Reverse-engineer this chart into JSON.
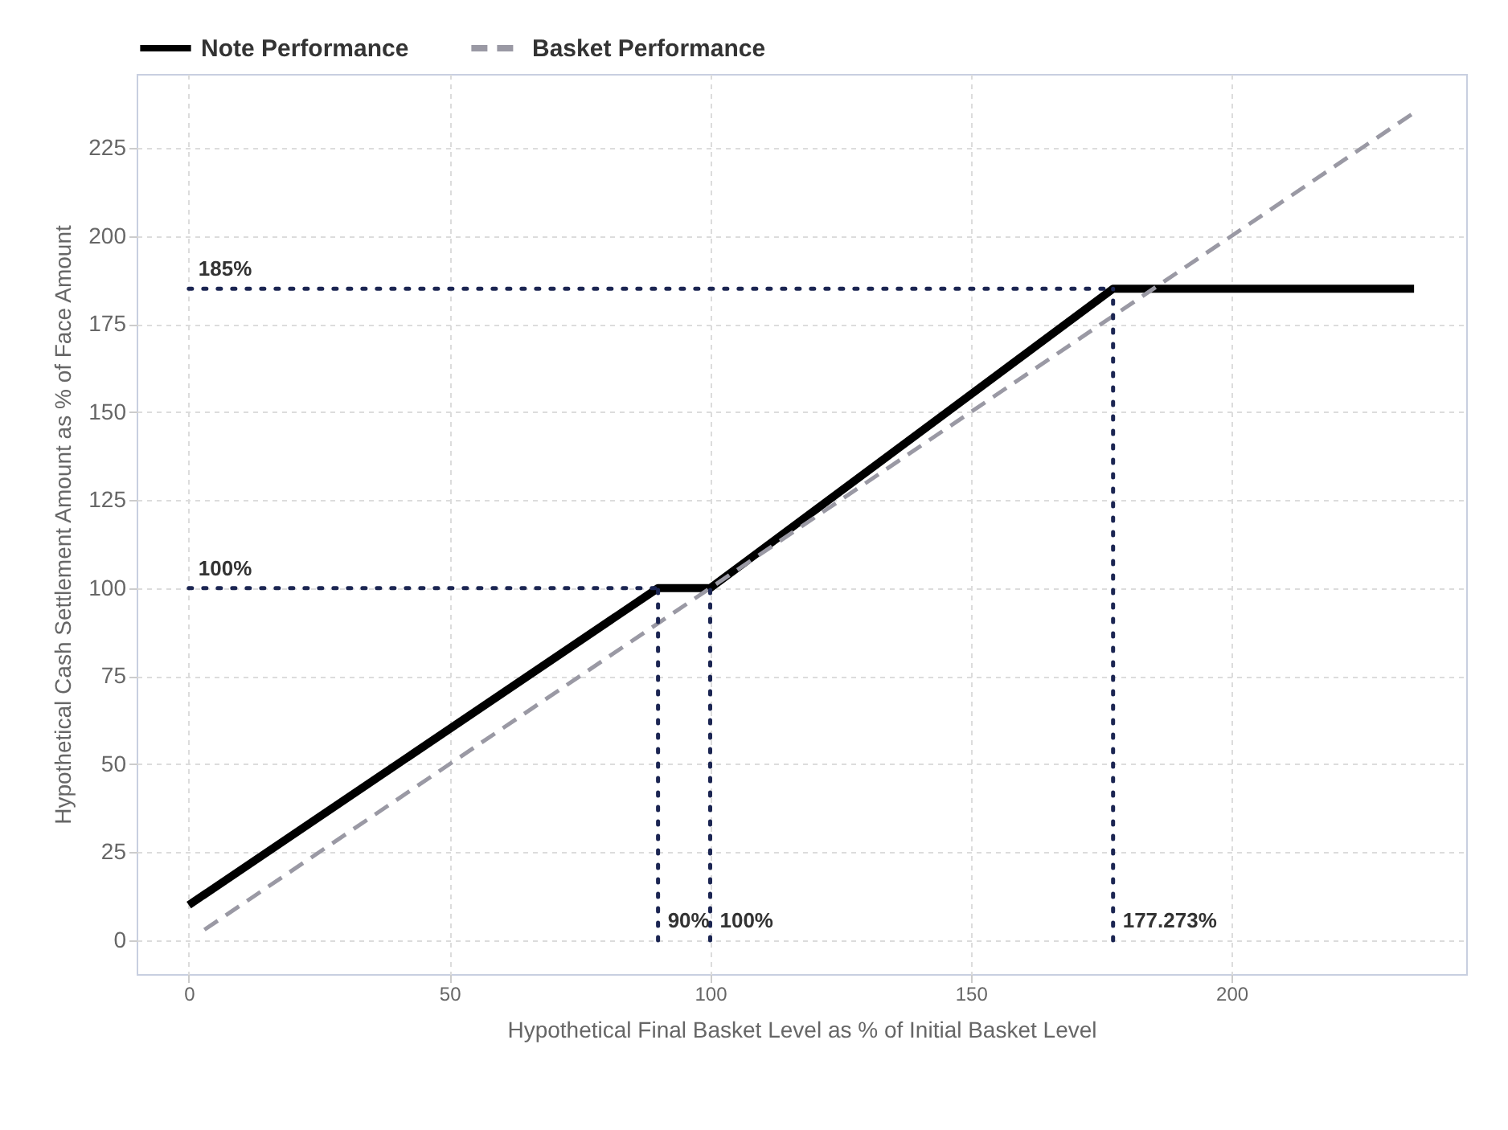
{
  "chart_data": {
    "type": "line",
    "xlabel": "Hypothetical Final Basket Level as % of Initial Basket Level",
    "ylabel": "Hypothetical Cash Settlement Amount as % of Face Amount",
    "xlim": [
      -10,
      245
    ],
    "ylim": [
      -9.6,
      246
    ],
    "xticks": [
      0,
      50,
      100,
      150,
      200
    ],
    "yticks": [
      0,
      25,
      50,
      75,
      100,
      125,
      150,
      175,
      200,
      225
    ],
    "grid": true,
    "legend": "top",
    "series": [
      {
        "name": "Note Performance",
        "color": "#000000",
        "line_style": "solid",
        "x": [
          0,
          90,
          100,
          177.273,
          235
        ],
        "values": [
          10,
          100,
          100,
          185,
          185
        ]
      },
      {
        "name": "Basket Performance",
        "color": "#9a99a4",
        "line_style": "dashed",
        "x": [
          3,
          235
        ],
        "values": [
          3,
          235
        ]
      },
      {
        "color": "#1b2552",
        "line_style": "dotted",
        "x": [
          0,
          177.273
        ],
        "values": [
          185,
          185
        ]
      },
      {
        "color": "#1b2552",
        "line_style": "dotted",
        "x": [
          0,
          90
        ],
        "values": [
          100,
          100
        ]
      },
      {
        "color": "#1b2552",
        "line_style": "dotted",
        "x": [
          90,
          90
        ],
        "values": [
          0,
          100
        ]
      },
      {
        "color": "#1b2552",
        "line_style": "dotted",
        "x": [
          100,
          100
        ],
        "values": [
          0,
          100
        ]
      },
      {
        "color": "#1b2552",
        "line_style": "dotted",
        "x": [
          177.273,
          177.273
        ],
        "values": [
          0,
          185
        ]
      }
    ],
    "annotations": [
      {
        "text": "185%",
        "x": 0,
        "y": 185
      },
      {
        "text": "100%",
        "x": 0,
        "y": 100
      },
      {
        "text": "90%",
        "x": 90,
        "y": 0
      },
      {
        "text": "100%",
        "x": 100,
        "y": 0
      },
      {
        "text": "177.273%",
        "x": 177.273,
        "y": 0
      }
    ]
  }
}
